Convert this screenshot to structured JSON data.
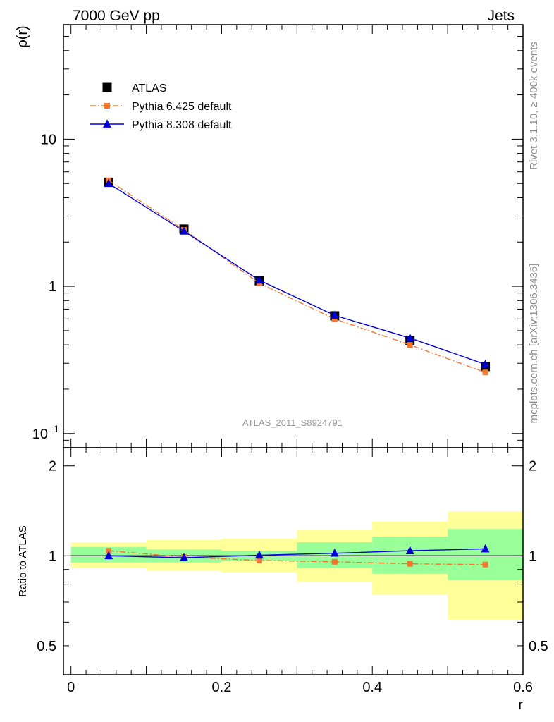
{
  "header": {
    "left": "7000 GeV pp",
    "right": "Jets"
  },
  "side_notes": {
    "rivet": "Rivet 3.1.10, ≥ 400k events",
    "mcplots": "mcplots.cern.ch [arXiv:1306.3436]"
  },
  "analysis_id": "ATLAS_2011_S8924791",
  "chart_data": [
    {
      "type": "line",
      "ylabel": "ρ(r)",
      "xlabel": "",
      "yscale": "log",
      "xlim": [
        -0.01,
        0.6
      ],
      "ylim": [
        0.08,
        60
      ],
      "y_ticks": [
        {
          "value": 0.1,
          "base": "10",
          "exp": "−1"
        },
        {
          "value": 1,
          "label": "1"
        },
        {
          "value": 10,
          "label": "10"
        }
      ],
      "legend_position": "top-left",
      "x": [
        0.05,
        0.15,
        0.25,
        0.35,
        0.45,
        0.55
      ],
      "series": [
        {
          "name": "ATLAS",
          "marker": "square",
          "color": "#000000",
          "values": [
            5.1,
            2.45,
            1.09,
            0.63,
            0.43,
            0.285
          ]
        },
        {
          "name": "Pythia 6.425 default",
          "marker": "square-small",
          "line": "dashdot",
          "color": "#f4772f",
          "values": [
            5.25,
            2.42,
            1.05,
            0.6,
            0.4,
            0.26
          ]
        },
        {
          "name": "Pythia 8.308 default",
          "marker": "triangle",
          "line": "solid",
          "color": "#0000d6",
          "values": [
            5.0,
            2.37,
            1.1,
            0.635,
            0.445,
            0.295
          ]
        }
      ]
    },
    {
      "type": "line",
      "ylabel": "Ratio to ATLAS",
      "xlabel": "r",
      "xlim": [
        -0.01,
        0.6
      ],
      "ylim": [
        0.4,
        2.3
      ],
      "x_ticks": [
        {
          "value": 0,
          "label": "0"
        },
        {
          "value": 0.2,
          "label": "0.2"
        },
        {
          "value": 0.4,
          "label": "0.4"
        },
        {
          "value": 0.6,
          "label": "0.6"
        }
      ],
      "y_ticks": [
        {
          "value": 0.5,
          "label": "0.5"
        },
        {
          "value": 1,
          "label": "1"
        },
        {
          "value": 2,
          "label": "2"
        }
      ],
      "bands": [
        {
          "x0": 0.0,
          "x1": 0.1,
          "yellow": [
            0.91,
            1.11
          ],
          "green": [
            0.95,
            1.07
          ]
        },
        {
          "x0": 0.1,
          "x1": 0.2,
          "yellow": [
            0.89,
            1.13
          ],
          "green": [
            0.95,
            1.05
          ]
        },
        {
          "x0": 0.2,
          "x1": 0.3,
          "yellow": [
            0.88,
            1.14
          ],
          "green": [
            0.96,
            1.04
          ]
        },
        {
          "x0": 0.3,
          "x1": 0.4,
          "yellow": [
            0.82,
            1.22
          ],
          "green": [
            0.91,
            1.11
          ]
        },
        {
          "x0": 0.4,
          "x1": 0.5,
          "yellow": [
            0.74,
            1.3
          ],
          "green": [
            0.87,
            1.16
          ]
        },
        {
          "x0": 0.5,
          "x1": 0.6,
          "yellow": [
            0.61,
            1.41
          ],
          "green": [
            0.83,
            1.23
          ]
        }
      ],
      "x": [
        0.05,
        0.15,
        0.25,
        0.35,
        0.45,
        0.55
      ],
      "series": [
        {
          "name": "Pythia 6.425 default",
          "color": "#f4772f",
          "values": [
            1.04,
            0.99,
            0.965,
            0.955,
            0.94,
            0.935
          ]
        },
        {
          "name": "Pythia 8.308 default",
          "color": "#0000d6",
          "values": [
            1.0,
            0.985,
            1.005,
            1.02,
            1.04,
            1.055
          ]
        }
      ]
    }
  ]
}
